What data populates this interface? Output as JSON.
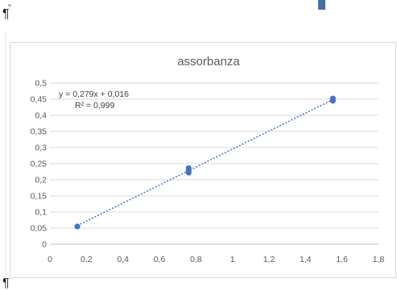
{
  "document": {
    "pilcrow_top": "¶",
    "pilcrow_bottom": "¶",
    "top_mark": "\""
  },
  "chart_data": {
    "type": "scatter",
    "title": "assorbanza",
    "xlabel": "",
    "ylabel": "",
    "xlim": [
      0,
      1.8
    ],
    "ylim": [
      0,
      0.5
    ],
    "x_ticks": [
      0,
      0.2,
      0.4,
      0.6,
      0.8,
      1,
      1.2,
      1.4,
      1.6,
      1.8
    ],
    "y_ticks": [
      0,
      0.05,
      0.1,
      0.15,
      0.2,
      0.25,
      0.3,
      0.35,
      0.4,
      0.45,
      0.5
    ],
    "x_tick_labels": [
      "0",
      "0,2",
      "0,4",
      "0,6",
      "0,8",
      "1",
      "1,2",
      "1,4",
      "1,6",
      "1,8"
    ],
    "y_tick_labels": [
      "0",
      "0,05",
      "0,1",
      "0,15",
      "0,2",
      "0,25",
      "0,3",
      "0,35",
      "0,4",
      "0,45",
      "0,5"
    ],
    "grid": "horizontal",
    "series": [
      {
        "color": "#4472c4",
        "points": [
          {
            "x": 0.15,
            "y": 0.055
          },
          {
            "x": 0.76,
            "y": 0.222
          },
          {
            "x": 0.76,
            "y": 0.228
          },
          {
            "x": 0.76,
            "y": 0.236
          },
          {
            "x": 1.55,
            "y": 0.445
          },
          {
            "x": 1.55,
            "y": 0.452
          }
        ]
      }
    ],
    "trendline": {
      "type": "linear",
      "slope": 0.279,
      "intercept": 0.016,
      "x_range": [
        0.15,
        1.55
      ],
      "style": "dotted",
      "color": "#4472c4",
      "equation_label": "y = 0,279x + 0,016",
      "r2_label": "R² = 0,999"
    }
  }
}
